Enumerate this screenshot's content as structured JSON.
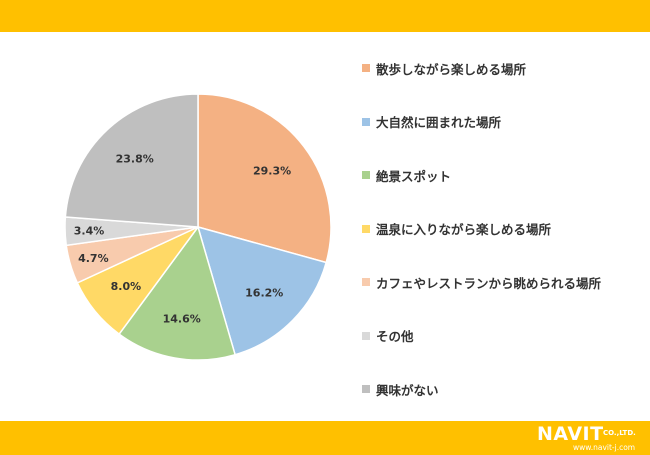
{
  "chart_data": {
    "type": "pie",
    "title": "",
    "legend_position": "right",
    "slices": [
      {
        "label": "散歩しながら楽しめる場所",
        "value": 29.3,
        "display": "29.3%",
        "color": "#F4B183"
      },
      {
        "label": "大自然に囲まれた場所",
        "value": 16.2,
        "display": "16.2%",
        "color": "#9DC3E6"
      },
      {
        "label": "絶景スポット",
        "value": 14.6,
        "display": "14.6%",
        "color": "#A9D18E"
      },
      {
        "label": "温泉に入りながら楽しめる場所",
        "value": 8.0,
        "display": "8.0%",
        "color": "#FFD966"
      },
      {
        "label": "カフェやレストランから眺められる場所",
        "value": 4.7,
        "display": "4.7%",
        "color": "#F8CBAD"
      },
      {
        "label": "その他",
        "value": 3.4,
        "display": "3.4%",
        "color": "#D9D9D9"
      },
      {
        "label": "興味がない",
        "value": 23.8,
        "display": "23.8%",
        "color": "#BFBFBF"
      }
    ]
  },
  "theme": {
    "banner_color": "#FFC000",
    "text_color": "#333333"
  },
  "brand": {
    "name": "NAVIT",
    "suffix": "CO.,LTD.",
    "url": "www.navit-j.com"
  }
}
